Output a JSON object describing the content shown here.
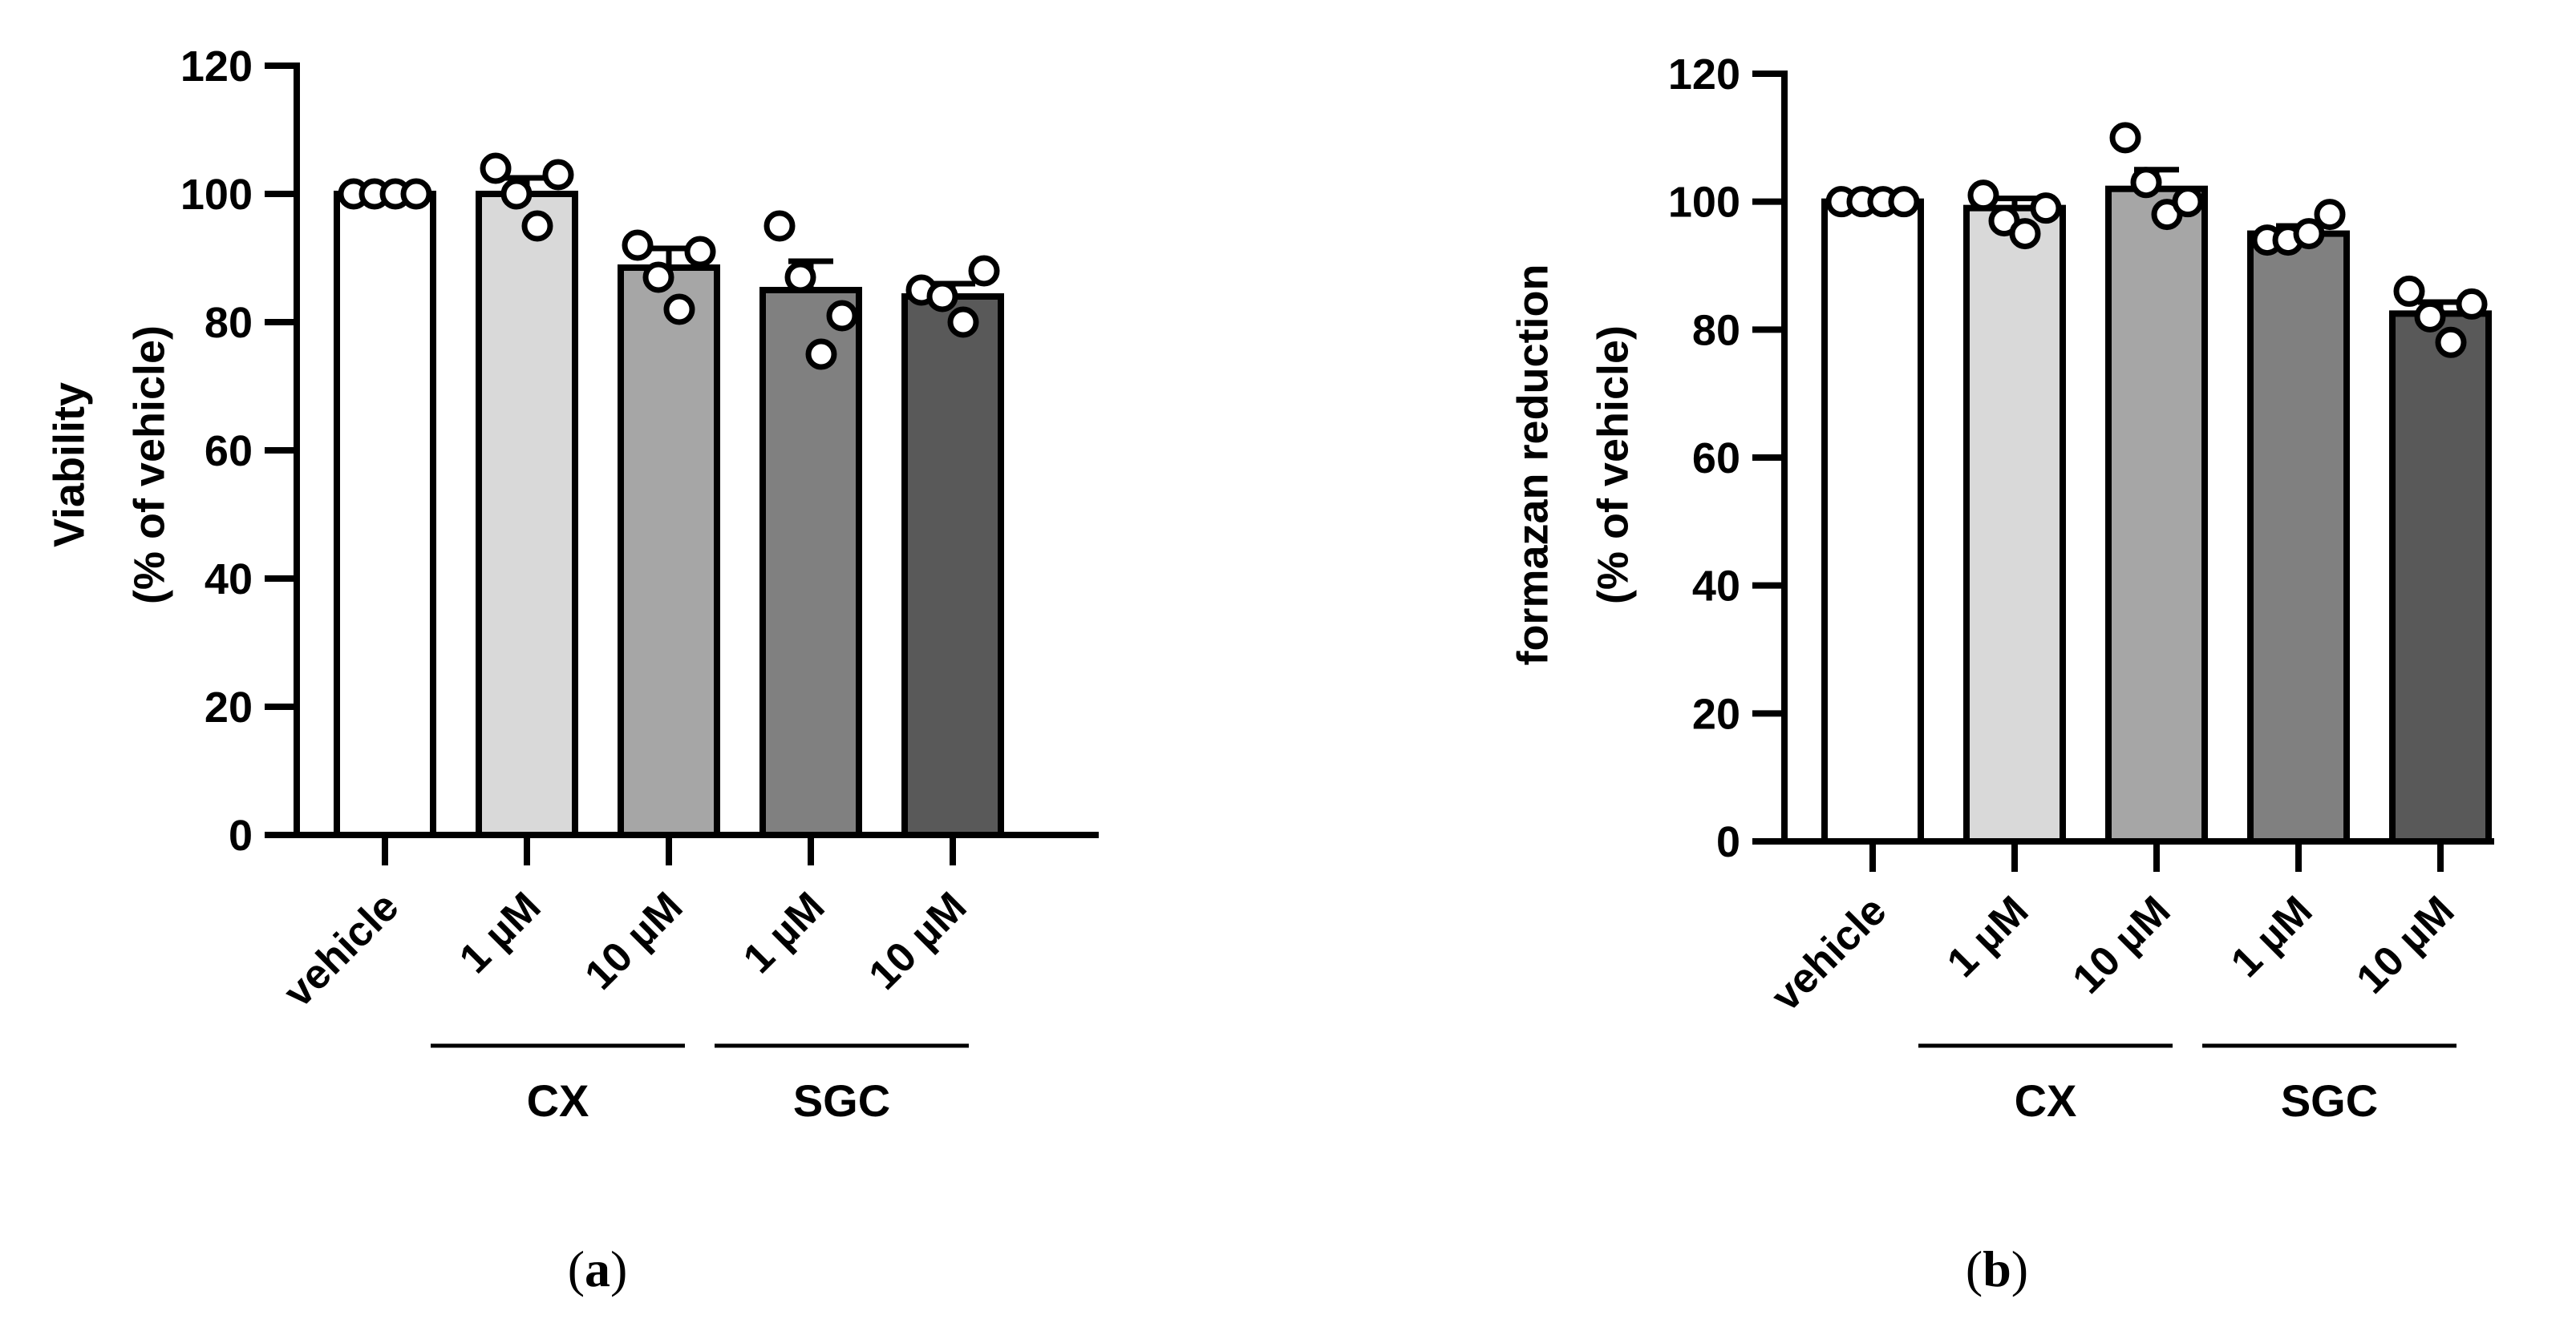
{
  "chart_data": [
    {
      "type": "bar",
      "panel_label": "a",
      "ylabel_lines": [
        "Viability",
        "(% of vehicle)"
      ],
      "ylim": [
        0,
        120
      ],
      "yticks": [
        "0",
        "20",
        "40",
        "60",
        "80",
        "100",
        "120"
      ],
      "categories": [
        "vehicle",
        "1 µM",
        "10 µM",
        "1 µM",
        "10 µM"
      ],
      "groups": [
        {
          "label": "CX",
          "categories": [
            1,
            2
          ]
        },
        {
          "label": "SGC",
          "categories": [
            3,
            4
          ]
        }
      ],
      "values": [
        100,
        100,
        88.5,
        85,
        84
      ],
      "sem": [
        0,
        2.5,
        3,
        4.5,
        2
      ],
      "points": [
        [
          100,
          100,
          100,
          100
        ],
        [
          104,
          100,
          95,
          103
        ],
        [
          92,
          87,
          82,
          91
        ],
        [
          95,
          87,
          75,
          81
        ],
        [
          85,
          84,
          80,
          88
        ]
      ],
      "bar_colors": [
        "#ffffff",
        "#d9d9d9",
        "#a6a6a6",
        "#808080",
        "#595959"
      ]
    },
    {
      "type": "bar",
      "panel_label": "b",
      "ylabel_lines": [
        "formazan reduction",
        "(% of vehicle)"
      ],
      "ylim": [
        0,
        120
      ],
      "yticks": [
        "0",
        "20",
        "40",
        "60",
        "80",
        "100",
        "120"
      ],
      "categories": [
        "vehicle",
        "1 µM",
        "10 µM",
        "1 µM",
        "10 µM"
      ],
      "groups": [
        {
          "label": "CX",
          "categories": [
            1,
            2
          ]
        },
        {
          "label": "SGC",
          "categories": [
            3,
            4
          ]
        }
      ],
      "values": [
        100,
        99,
        102,
        95,
        82.5
      ],
      "sem": [
        0,
        1.5,
        3,
        1.2,
        1.8
      ],
      "points": [
        [
          100,
          100,
          100,
          100
        ],
        [
          101,
          97,
          95,
          99
        ],
        [
          110,
          103,
          98,
          100
        ],
        [
          94,
          94,
          95,
          98
        ],
        [
          86,
          82,
          78,
          84
        ]
      ],
      "bar_colors": [
        "#ffffff",
        "#d9d9d9",
        "#a6a6a6",
        "#808080",
        "#595959"
      ]
    }
  ]
}
